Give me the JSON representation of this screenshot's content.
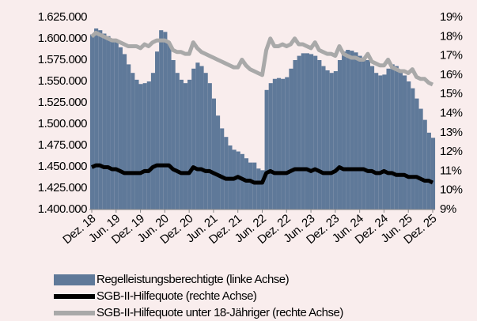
{
  "chart_data": {
    "type": "combo",
    "categories": [
      "Dez. 18",
      null,
      null,
      null,
      null,
      null,
      "Jun. 19",
      null,
      null,
      null,
      null,
      null,
      "Dez. 19",
      null,
      null,
      null,
      null,
      null,
      "Jun. 20",
      null,
      null,
      null,
      null,
      null,
      "Dez. 20",
      null,
      null,
      null,
      null,
      null,
      "Jun. 21",
      null,
      null,
      null,
      null,
      null,
      "Dez. 21",
      null,
      null,
      null,
      null,
      null,
      "Jun. 22",
      null,
      null,
      null,
      null,
      null,
      "Dez. 22",
      null,
      null,
      null,
      null,
      null,
      "Jun. 23",
      null,
      null,
      null,
      null,
      null,
      "Dez. 23",
      null,
      null,
      null,
      null,
      null,
      "Jun. 24",
      null,
      null,
      null,
      null,
      null,
      "Dez. 24",
      null,
      null,
      null,
      null,
      null,
      "Jun. 25",
      null,
      null,
      null,
      null,
      null,
      "Dez. 25"
    ],
    "series": [
      {
        "name": "Regelleistungsberechtigte (linke Achse)",
        "type": "bar",
        "color": "#5f7999",
        "values": [
          1605000,
          1612000,
          1610000,
          1606000,
          1603000,
          1600000,
          1598000,
          1590000,
          1582000,
          1570000,
          1560000,
          1552000,
          1547000,
          1548000,
          1550000,
          1560000,
          1585000,
          1610000,
          1608000,
          1595000,
          1575000,
          1560000,
          1552000,
          1548000,
          1552000,
          1565000,
          1572000,
          1568000,
          1560000,
          1548000,
          1530000,
          1510000,
          1495000,
          1485000,
          1475000,
          1470000,
          1468000,
          1465000,
          1460000,
          1455000,
          1455000,
          1448000,
          1446000,
          1540000,
          1548000,
          1553000,
          1554000,
          1553000,
          1555000,
          1565000,
          1575000,
          1580000,
          1583000,
          1583000,
          1582000,
          1580000,
          1575000,
          1568000,
          1563000,
          1560000,
          1562000,
          1575000,
          1585000,
          1587000,
          1586000,
          1584000,
          1580000,
          1578000,
          1575000,
          1568000,
          1560000,
          1557000,
          1558000,
          1565000,
          1570000,
          1568000,
          1563000,
          1557000,
          1550000,
          1542000,
          1530000,
          1518000,
          1505000,
          1490000,
          1484000
        ]
      },
      {
        "name": "SGB-II-Hilfequote (rechte Achse)",
        "type": "line",
        "axis": "y2",
        "color": "#000000",
        "values": [
          11.2,
          11.3,
          11.3,
          11.2,
          11.2,
          11.1,
          11.1,
          11.0,
          10.9,
          10.9,
          10.9,
          10.9,
          10.9,
          11.0,
          11.0,
          11.2,
          11.3,
          11.3,
          11.3,
          11.3,
          11.1,
          11.0,
          10.9,
          10.9,
          10.9,
          11.2,
          11.1,
          11.1,
          11.0,
          11.0,
          10.9,
          10.8,
          10.7,
          10.6,
          10.6,
          10.6,
          10.7,
          10.6,
          10.5,
          10.5,
          10.4,
          10.4,
          10.4,
          10.9,
          11.0,
          10.9,
          10.9,
          10.9,
          10.9,
          11.0,
          11.1,
          11.1,
          11.1,
          11.1,
          11.0,
          11.1,
          11.0,
          10.9,
          10.9,
          10.9,
          11.0,
          11.2,
          11.1,
          11.1,
          11.1,
          11.1,
          11.1,
          11.1,
          11.0,
          11.0,
          10.9,
          10.9,
          11.0,
          10.9,
          10.9,
          10.8,
          10.8,
          10.8,
          10.7,
          10.7,
          10.7,
          10.6,
          10.5,
          10.5,
          10.4
        ]
      },
      {
        "name": "SGB-II-Hilfequote unter 18-Jähriger (rechte Achse)",
        "type": "line",
        "axis": "y2",
        "color": "#a9a9a9",
        "values": [
          18.0,
          18.2,
          18.1,
          18.0,
          17.9,
          17.8,
          17.8,
          17.7,
          17.6,
          17.5,
          17.5,
          17.5,
          17.4,
          17.6,
          17.5,
          17.7,
          17.8,
          17.8,
          17.8,
          17.7,
          17.3,
          17.2,
          17.2,
          17.1,
          17.1,
          17.7,
          17.4,
          17.2,
          17.1,
          17.0,
          16.9,
          16.8,
          16.7,
          16.6,
          16.5,
          16.4,
          16.4,
          16.8,
          16.5,
          16.3,
          16.2,
          16.1,
          16.0,
          17.3,
          17.9,
          17.5,
          17.5,
          17.6,
          17.5,
          17.6,
          17.9,
          17.6,
          17.6,
          17.5,
          17.4,
          17.7,
          17.3,
          17.2,
          17.1,
          17.1,
          17.0,
          17.5,
          17.1,
          17.0,
          16.9,
          16.9,
          16.8,
          16.8,
          17.1,
          16.7,
          16.6,
          16.5,
          16.5,
          16.8,
          16.4,
          16.3,
          16.2,
          16.2,
          16.1,
          16.3,
          15.9,
          15.8,
          15.8,
          15.6,
          15.5
        ]
      }
    ],
    "ylim": [
      1400000,
      1625000
    ],
    "yticks": [
      {
        "value": 1400000,
        "label": "1.400.000"
      },
      {
        "value": 1425000,
        "label": "1.425.000"
      },
      {
        "value": 1450000,
        "label": "1.450.000"
      },
      {
        "value": 1475000,
        "label": "1.475.000"
      },
      {
        "value": 1500000,
        "label": "1.500.000"
      },
      {
        "value": 1525000,
        "label": "1.525.000"
      },
      {
        "value": 1550000,
        "label": "1.550.000"
      },
      {
        "value": 1575000,
        "label": "1.575.000"
      },
      {
        "value": 1600000,
        "label": "1.600.000"
      },
      {
        "value": 1625000,
        "label": "1.625.000"
      }
    ],
    "y2lim": [
      9,
      19
    ],
    "y2ticks": [
      {
        "value": 9,
        "label": "9%"
      },
      {
        "value": 10,
        "label": "10%"
      },
      {
        "value": 11,
        "label": "11%"
      },
      {
        "value": 12,
        "label": "12%"
      },
      {
        "value": 13,
        "label": "13%"
      },
      {
        "value": 14,
        "label": "14%"
      },
      {
        "value": 15,
        "label": "15%"
      },
      {
        "value": 16,
        "label": "16%"
      },
      {
        "value": 17,
        "label": "17%"
      },
      {
        "value": 18,
        "label": "18%"
      },
      {
        "value": 19,
        "label": "19%"
      }
    ],
    "grid": false
  }
}
